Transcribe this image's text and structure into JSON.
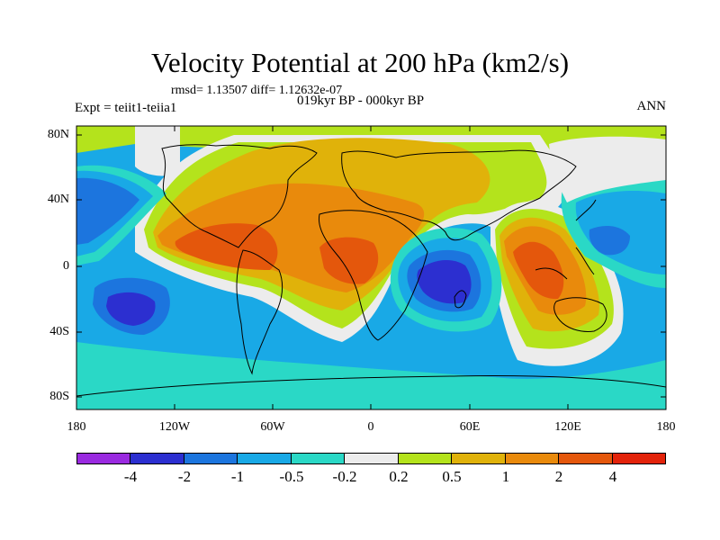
{
  "title": "Velocity Potential at 200 hPa (km2/s)",
  "stats": "rmsd= 1.13507  diff= 1.12632e-07",
  "experiment": "Expt = teiit1-teiia1",
  "period": "019kyr BP - 000kyr BP",
  "season": "ANN",
  "y_axis": {
    "labels": [
      "80N",
      "40N",
      "0",
      "40S",
      "80S"
    ]
  },
  "x_axis": {
    "labels": [
      "180",
      "120W",
      "60W",
      "0",
      "60E",
      "120E",
      "180"
    ]
  },
  "colorbar": {
    "colors": [
      "#9a2ae0",
      "#2c2fd0",
      "#1c75de",
      "#19a9e6",
      "#2ad8c6",
      "#ececec",
      "#b4e31c",
      "#e0b20a",
      "#e98a0c",
      "#e4570c",
      "#e3230a"
    ],
    "labels": [
      "-4",
      "-2",
      "-1",
      "-0.5",
      "-0.2",
      "0.2",
      "0.5",
      "1",
      "2",
      "4"
    ]
  },
  "map_fill": {
    "background": "#ececec",
    "levels": {
      "m2": "#1c75de",
      "m4": "#2c2fd0",
      "m1": "#19a9e6",
      "m05": "#2ad8c6",
      "p02": "#b4e31c",
      "p05": "#e0b20a",
      "p1": "#e98a0c",
      "p2": "#e4570c"
    }
  }
}
